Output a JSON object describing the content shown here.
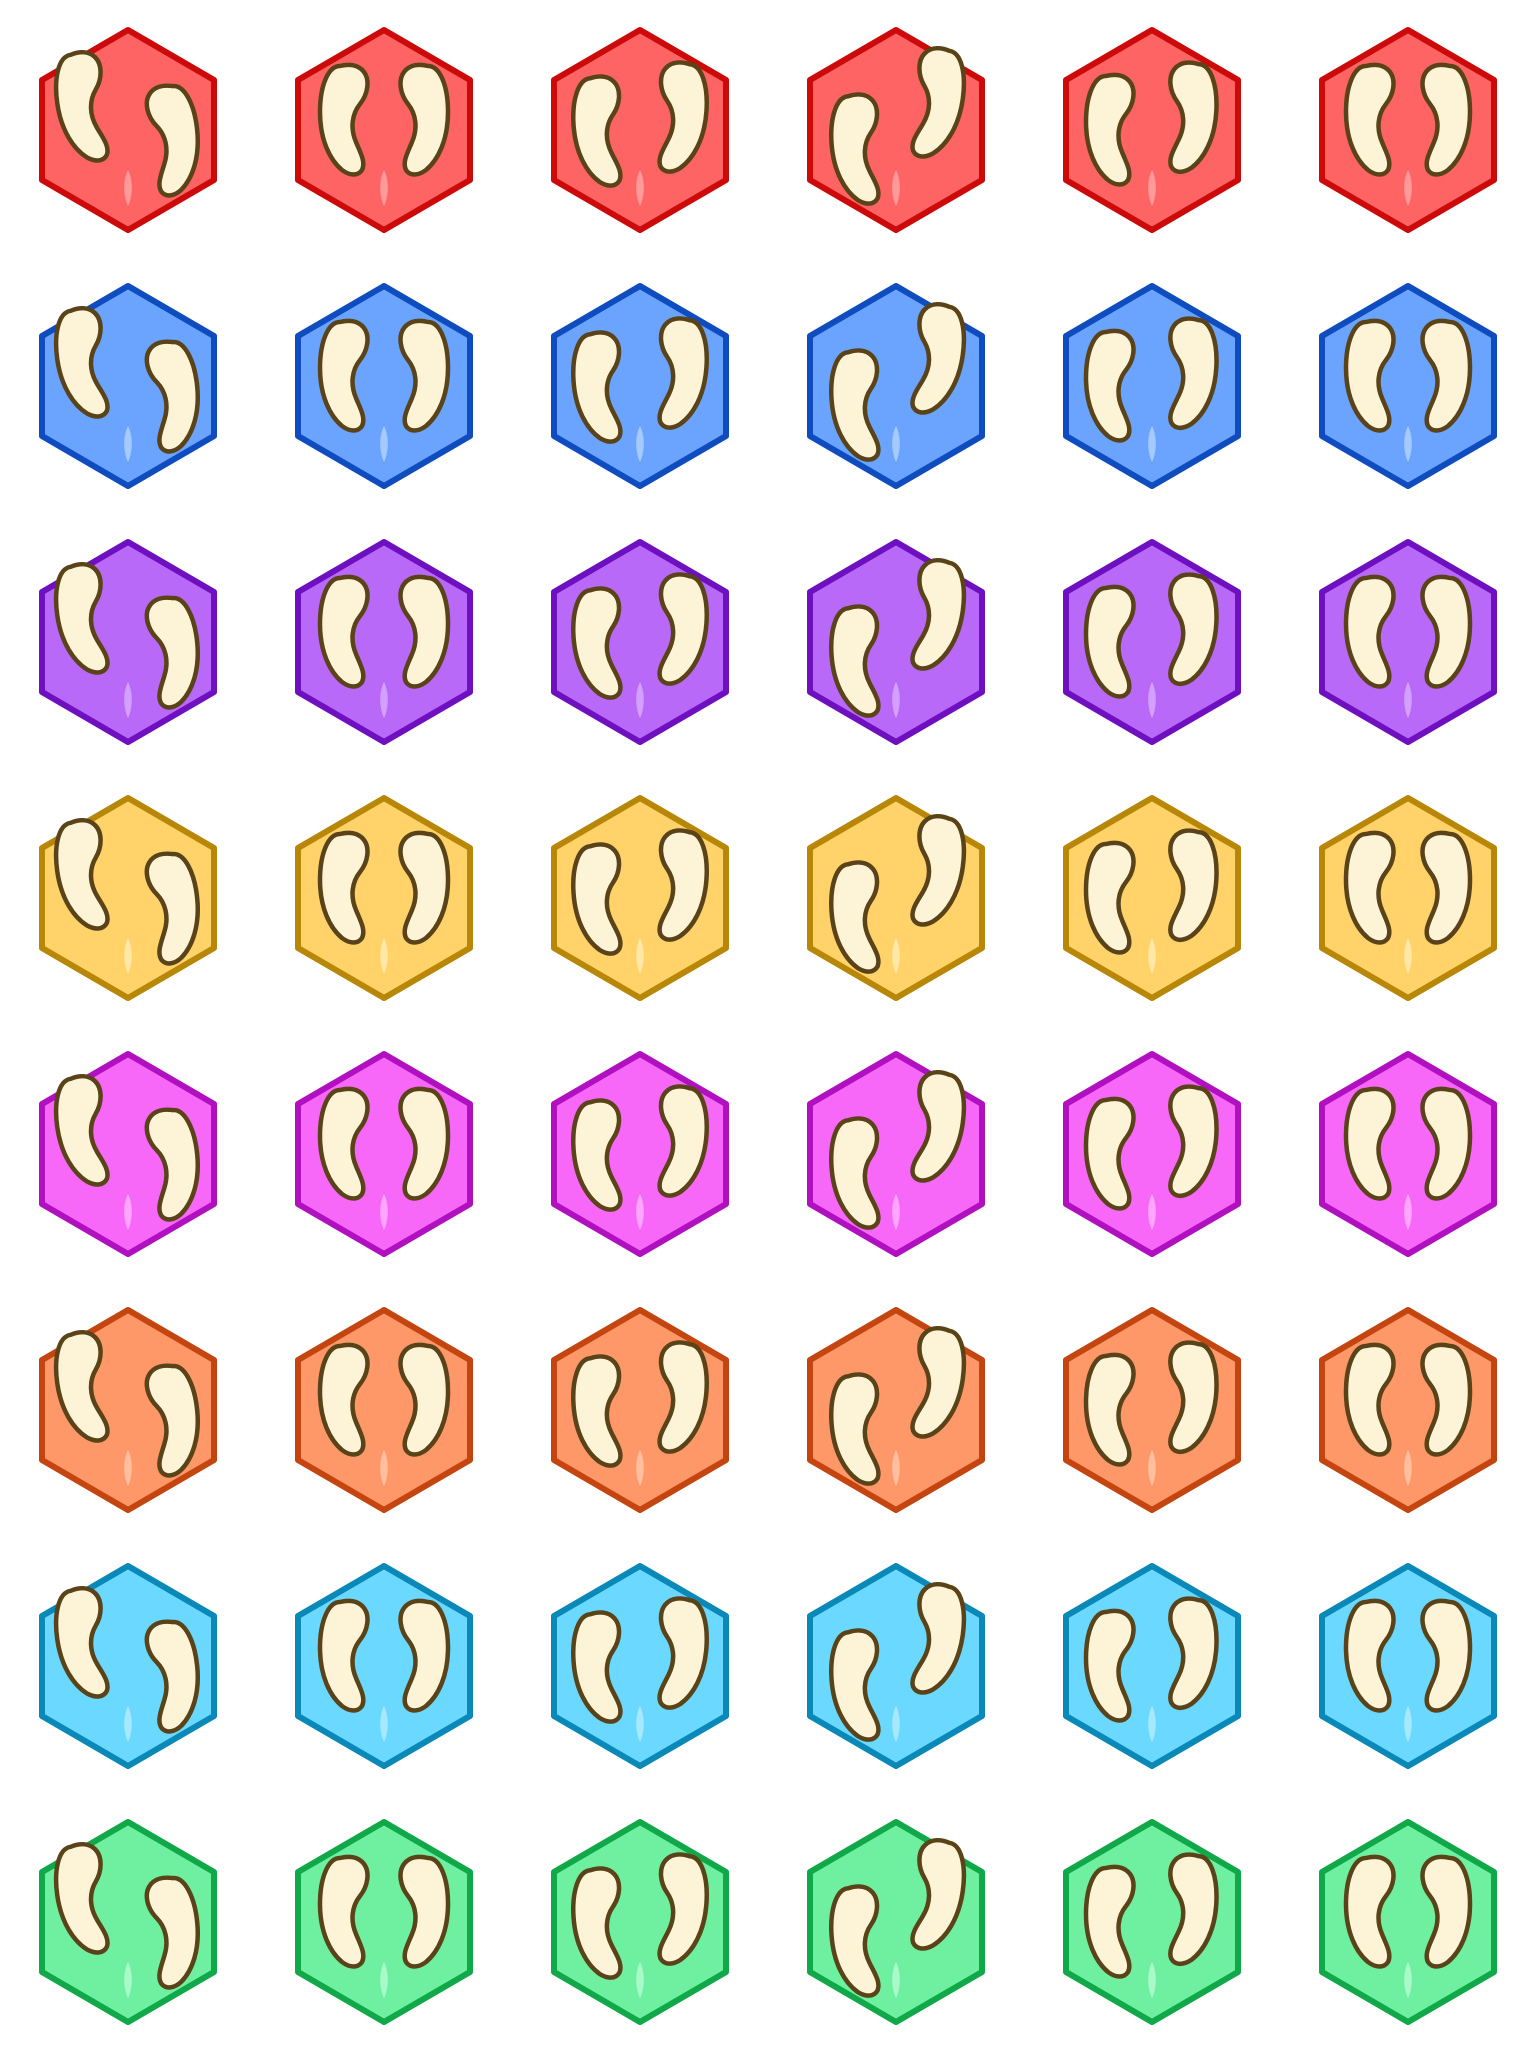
{
  "sheet": {
    "background": "#ffffff",
    "outline_color": "#5a4318",
    "hoof_fill": "#fdf4d7",
    "icon_name": "cloven-hoof-icon"
  },
  "palettes": [
    {
      "name": "red",
      "fill": "#ff6464",
      "stroke": "#cc0a0a",
      "highlight": "#ffb0b0"
    },
    {
      "name": "blue",
      "fill": "#6aa4ff",
      "stroke": "#0e4cc0",
      "highlight": "#c0d8ff"
    },
    {
      "name": "purple",
      "fill": "#b869f7",
      "stroke": "#6e10c0",
      "highlight": "#e0b8ff"
    },
    {
      "name": "yellow",
      "fill": "#ffd36a",
      "stroke": "#b88708",
      "highlight": "#fff0c0"
    },
    {
      "name": "magenta",
      "fill": "#f868f8",
      "stroke": "#b010c0",
      "highlight": "#ffc0ff"
    },
    {
      "name": "orange",
      "fill": "#ff9868",
      "stroke": "#c44510",
      "highlight": "#ffd0b8"
    },
    {
      "name": "cyan",
      "fill": "#6ad8ff",
      "stroke": "#0a88b8",
      "highlight": "#c0f0ff"
    },
    {
      "name": "green",
      "fill": "#6ef0a0",
      "stroke": "#10a848",
      "highlight": "#c0ffd8"
    }
  ],
  "variants": [
    {
      "name": "spread-left"
    },
    {
      "name": "paired-upright"
    },
    {
      "name": "right-raised"
    },
    {
      "name": "stepping"
    },
    {
      "name": "right-raised-b"
    },
    {
      "name": "paired-symmetric"
    }
  ]
}
